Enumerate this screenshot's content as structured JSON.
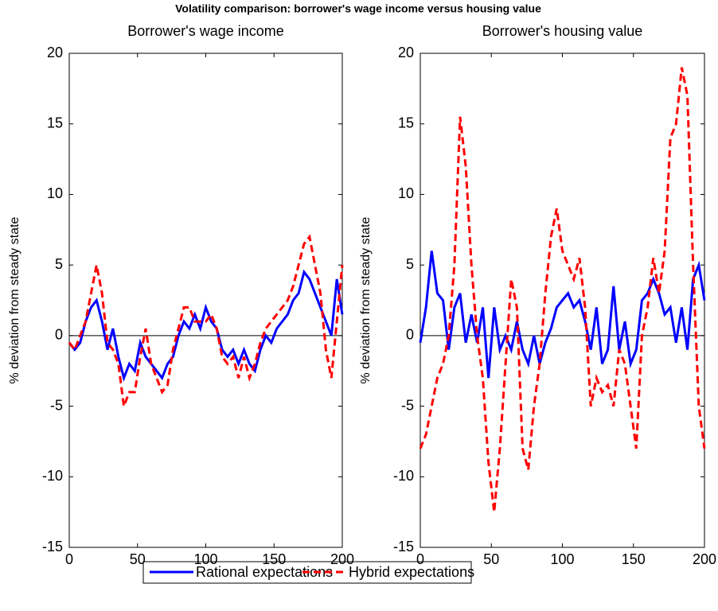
{
  "title": "Volatility comparison: borrower's wage income versus housing value",
  "legend": [
    "Rational expectations",
    "Hybrid expectations"
  ],
  "chart_data": [
    {
      "type": "line",
      "title": "Borrower's wage income",
      "ylabel": "% deviation from steady state",
      "x": [
        0,
        4,
        8,
        12,
        16,
        20,
        24,
        28,
        32,
        36,
        40,
        44,
        48,
        52,
        56,
        60,
        64,
        68,
        72,
        76,
        80,
        84,
        88,
        92,
        96,
        100,
        104,
        108,
        112,
        116,
        120,
        124,
        128,
        132,
        136,
        140,
        144,
        148,
        152,
        156,
        160,
        164,
        168,
        172,
        176,
        180,
        184,
        188,
        192,
        196,
        200
      ],
      "series": [
        {
          "color": "#0000ff",
          "dash": false,
          "values": [
            -0.5,
            -1,
            -0.5,
            1,
            2,
            2.5,
            1,
            -1,
            0.5,
            -1.5,
            -3,
            -2,
            -2.5,
            -0.5,
            -1.5,
            -2,
            -2.5,
            -3,
            -2,
            -1.5,
            0,
            1,
            0.5,
            1.5,
            0.5,
            2,
            1,
            0.5,
            -1,
            -1.5,
            -1,
            -2,
            -1,
            -2,
            -2.5,
            -1,
            0,
            -0.5,
            0.5,
            1,
            1.5,
            2.5,
            3,
            4.5,
            4,
            3,
            2,
            1,
            0,
            4,
            1.5
          ]
        },
        {
          "color": "#ff0000",
          "dash": true,
          "values": [
            -0.5,
            -1,
            0,
            1,
            3,
            5,
            3,
            -0.5,
            -1,
            -2,
            -5,
            -4,
            -4,
            -1.5,
            0.5,
            -2,
            -3,
            -4,
            -3.5,
            -1,
            0.5,
            2,
            2,
            1,
            1,
            1,
            1.5,
            0.5,
            -1.5,
            -2,
            -1.5,
            -3,
            -1.5,
            -3,
            -2,
            -0.5,
            0.5,
            1,
            1.5,
            2,
            2.5,
            3.5,
            5,
            6.5,
            7,
            5,
            3,
            -1,
            -3,
            1,
            5
          ]
        }
      ],
      "xlim": [
        0,
        200
      ],
      "ylim": [
        -15,
        20
      ],
      "xticks": [
        0,
        50,
        100,
        150,
        200
      ],
      "yticks": [
        -15,
        -10,
        -5,
        0,
        5,
        10,
        15,
        20
      ],
      "hline": 0
    },
    {
      "type": "line",
      "title": "Borrower's housing value",
      "ylabel": "% deviation from steady state",
      "x": [
        0,
        4,
        8,
        12,
        16,
        20,
        24,
        28,
        32,
        36,
        40,
        44,
        48,
        52,
        56,
        60,
        64,
        68,
        72,
        76,
        80,
        84,
        88,
        92,
        96,
        100,
        104,
        108,
        112,
        116,
        120,
        124,
        128,
        132,
        136,
        140,
        144,
        148,
        152,
        156,
        160,
        164,
        168,
        172,
        176,
        180,
        184,
        188,
        192,
        196,
        200
      ],
      "series": [
        {
          "color": "#0000ff",
          "dash": false,
          "values": [
            -0.5,
            2,
            6,
            3,
            2.5,
            -1,
            2,
            3,
            -0.5,
            1.5,
            -0.5,
            2,
            -3,
            2,
            -1,
            0,
            -1,
            1,
            -1,
            -2,
            0,
            -2,
            -0.5,
            0.5,
            2,
            2.5,
            3,
            2,
            2.5,
            1,
            -1,
            2,
            -2,
            -1,
            3.5,
            -1,
            1,
            -2,
            -1,
            2.5,
            3,
            4,
            3,
            1.5,
            2,
            -0.5,
            2,
            -1,
            4,
            5,
            2.5
          ]
        },
        {
          "color": "#ff0000",
          "dash": true,
          "values": [
            -8,
            -7,
            -5,
            -3,
            -2,
            0,
            5,
            15.5,
            12,
            5,
            0,
            -3,
            -9,
            -12.5,
            -8,
            -2,
            4,
            2,
            -8,
            -9.5,
            -5,
            -2,
            3,
            7,
            9,
            6,
            5,
            4,
            5.5,
            2,
            -5,
            -3,
            -4,
            -3.5,
            -5,
            -1,
            -2,
            -5,
            -8,
            0,
            2,
            5.5,
            3,
            6,
            14,
            15,
            19,
            17,
            5,
            -5,
            -8
          ]
        }
      ],
      "xlim": [
        0,
        200
      ],
      "ylim": [
        -15,
        20
      ],
      "xticks": [
        0,
        50,
        100,
        150,
        200
      ],
      "yticks": [
        -15,
        -10,
        -5,
        0,
        5,
        10,
        15,
        20
      ],
      "hline": 0
    }
  ]
}
